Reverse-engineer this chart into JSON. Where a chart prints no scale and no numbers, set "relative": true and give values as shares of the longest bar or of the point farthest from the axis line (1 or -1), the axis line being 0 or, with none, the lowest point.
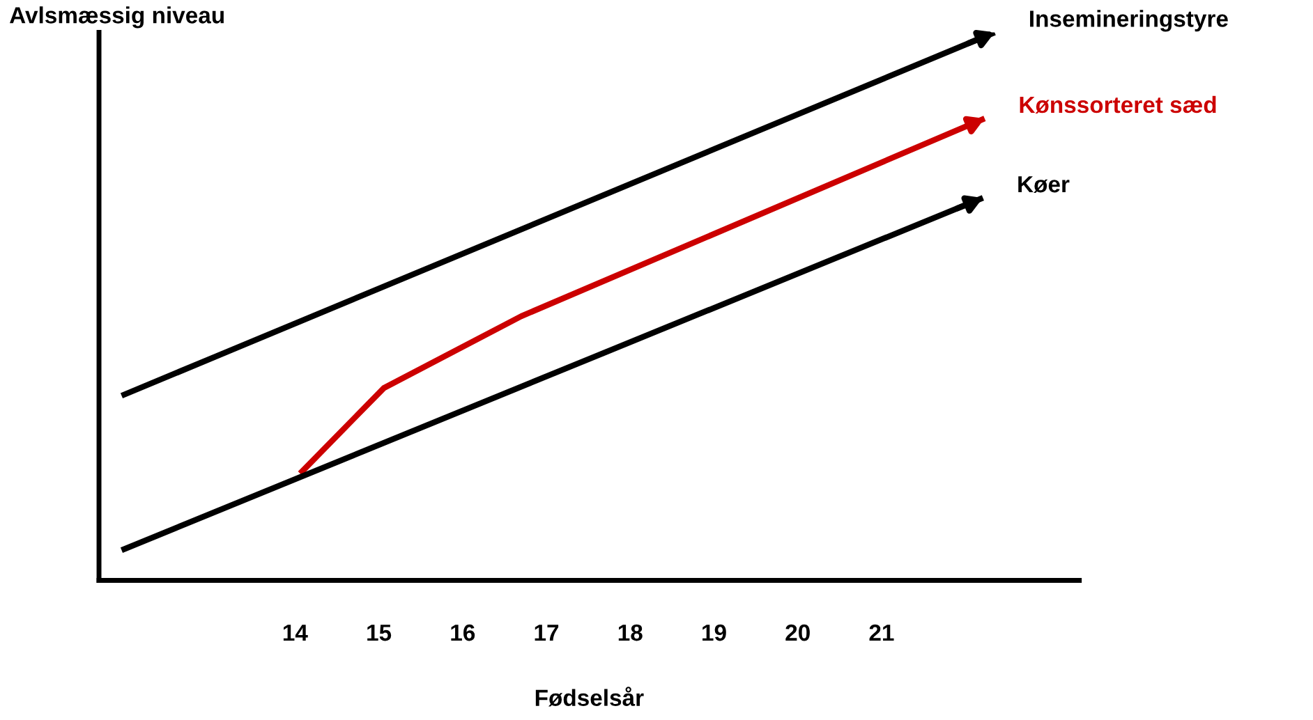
{
  "chart_data": {
    "type": "line",
    "relative": true,
    "xlabel": "Fødselsår",
    "ylabel": "Avlsmæssig niveau",
    "xlim": [
      11.66,
      23.36
    ],
    "xticks": [
      14,
      15,
      16,
      17,
      18,
      19,
      20,
      21
    ],
    "grid": false,
    "legend": false,
    "marker": "none",
    "line_style": "solid",
    "series": [
      {
        "name": "Insemineringstyre",
        "color": "#000000",
        "x": [
          11.93,
          22.35
        ],
        "values": [
          0.337,
          1.0
        ]
      },
      {
        "name": "Kønssorteret sæd",
        "color": "#cc0000",
        "x": [
          14.06,
          15.06,
          16.7,
          22.23
        ],
        "values": [
          0.195,
          0.351,
          0.482,
          0.843
        ]
      },
      {
        "name": "Køer",
        "color": "#000000",
        "x": [
          11.93,
          22.21
        ],
        "values": [
          0.055,
          0.698
        ]
      }
    ]
  }
}
